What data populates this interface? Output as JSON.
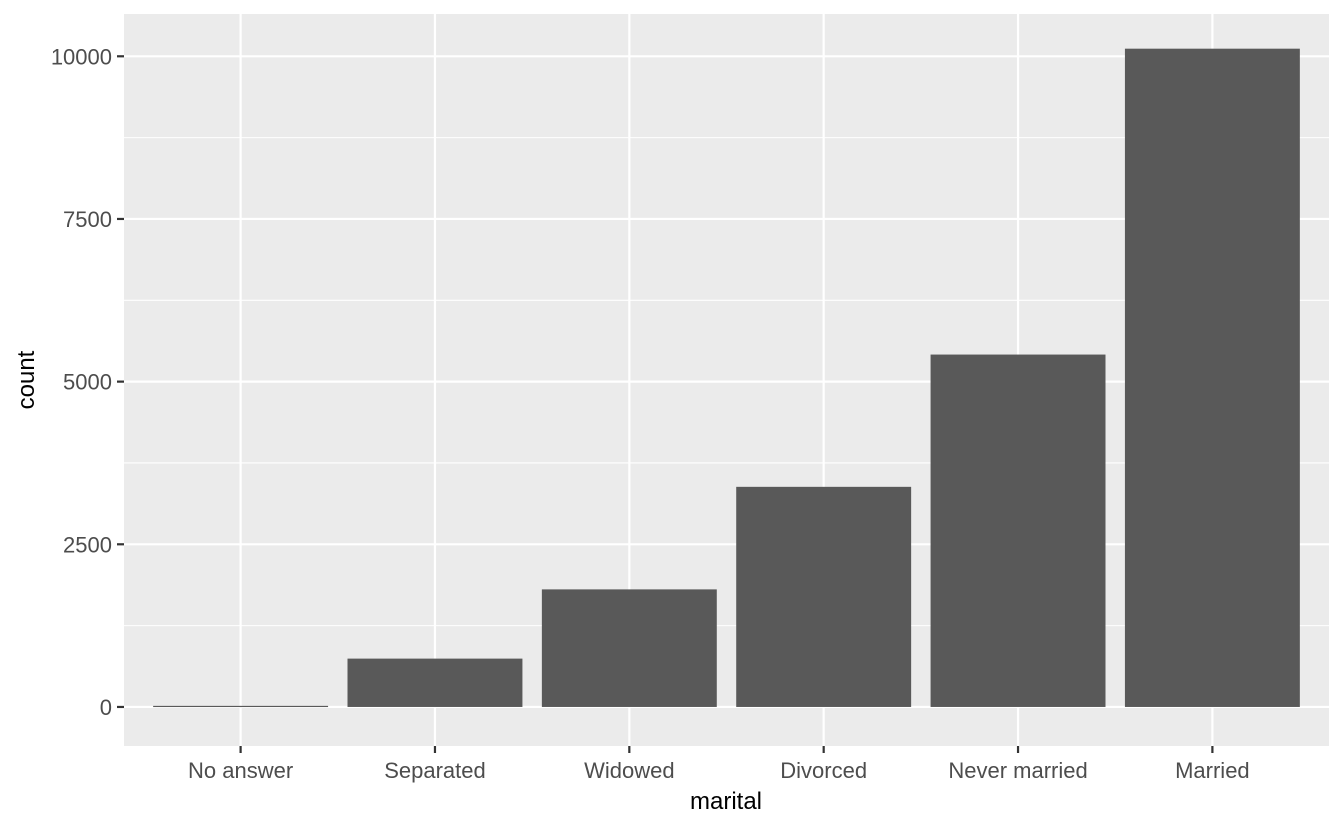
{
  "chart_data": {
    "type": "bar",
    "title": "",
    "xlabel": "marital",
    "ylabel": "count",
    "categories": [
      "No answer",
      "Separated",
      "Widowed",
      "Divorced",
      "Never married",
      "Married"
    ],
    "values": [
      17,
      743,
      1807,
      3383,
      5416,
      10117
    ],
    "ylim": [
      -600,
      10650
    ],
    "y_ticks": [
      0,
      2500,
      5000,
      7500,
      10000
    ],
    "y_tick_labels": [
      "0",
      "2500",
      "5000",
      "7500",
      "10000"
    ],
    "grid": true,
    "legend": "none",
    "colors": {
      "panel_background": "#ebebeb",
      "grid_line": "#ffffff",
      "bar_fill": "#595959",
      "tick_mark": "#333333",
      "tick_label": "#4d4d4d",
      "axis_title": "#000000"
    }
  }
}
